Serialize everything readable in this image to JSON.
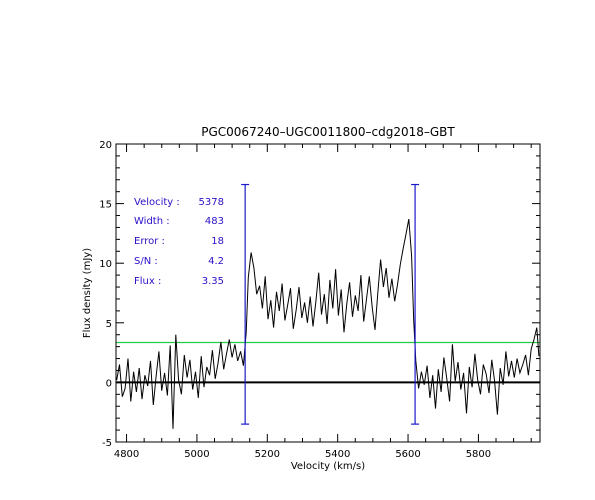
{
  "chart_data": {
    "type": "line",
    "title": "PGC0067240–UGC0011800–cdg2018–GBT",
    "xlabel": "Velocity (km/s)",
    "ylabel": "Flux density (mJy)",
    "xlim": [
      4770,
      5975
    ],
    "ylim": [
      -5,
      20
    ],
    "x_ticks": [
      4800,
      5000,
      5200,
      5400,
      5600,
      5800
    ],
    "y_ticks": [
      -5,
      0,
      5,
      10,
      15,
      20
    ],
    "grid": false,
    "zero_line": 0,
    "green_level": 3.35,
    "width_markers": {
      "lines": [
        5137,
        5620
      ],
      "y_range": [
        -3.5,
        16.6
      ]
    },
    "info": [
      {
        "label": "Velocity :",
        "value": "5378"
      },
      {
        "label": "Width :",
        "value": "483"
      },
      {
        "label": "Error :",
        "value": "18"
      },
      {
        "label": "S/N :",
        "value": "4.2"
      },
      {
        "label": "Flux :",
        "value": "3.35"
      }
    ],
    "colors": {
      "spectrum": "#000000",
      "markers": "#1a1acc",
      "level": "#22cc44",
      "info_text": "#2a10c8"
    },
    "series": [
      {
        "values": [
          [
            4772,
            0.2
          ],
          [
            4780,
            1.5
          ],
          [
            4788,
            -1.2
          ],
          [
            4796,
            -0.5
          ],
          [
            4804,
            2.0
          ],
          [
            4812,
            -1.6
          ],
          [
            4820,
            0.9
          ],
          [
            4828,
            -0.8
          ],
          [
            4836,
            1.2
          ],
          [
            4844,
            -1.4
          ],
          [
            4852,
            0.6
          ],
          [
            4860,
            -0.3
          ],
          [
            4868,
            1.8
          ],
          [
            4876,
            -1.9
          ],
          [
            4884,
            0.5
          ],
          [
            4892,
            2.6
          ],
          [
            4900,
            -0.7
          ],
          [
            4908,
            0.8
          ],
          [
            4916,
            -1.1
          ],
          [
            4924,
            3.1
          ],
          [
            4932,
            -3.9
          ],
          [
            4940,
            4.0
          ],
          [
            4948,
            0.2
          ],
          [
            4956,
            -1.0
          ],
          [
            4964,
            2.3
          ],
          [
            4972,
            0.4
          ],
          [
            4980,
            1.9
          ],
          [
            4988,
            -0.6
          ],
          [
            4996,
            0.9
          ],
          [
            5004,
            -1.3
          ],
          [
            5012,
            2.2
          ],
          [
            5020,
            -0.4
          ],
          [
            5028,
            1.3
          ],
          [
            5036,
            0.6
          ],
          [
            5044,
            2.7
          ],
          [
            5052,
            0.3
          ],
          [
            5060,
            1.6
          ],
          [
            5068,
            3.4
          ],
          [
            5076,
            1.1
          ],
          [
            5084,
            2.4
          ],
          [
            5092,
            3.6
          ],
          [
            5100,
            2.1
          ],
          [
            5108,
            3.2
          ],
          [
            5116,
            1.8
          ],
          [
            5124,
            2.6
          ],
          [
            5132,
            1.4
          ],
          [
            5140,
            4.2
          ],
          [
            5146,
            8.8
          ],
          [
            5154,
            10.9
          ],
          [
            5162,
            9.6
          ],
          [
            5170,
            7.4
          ],
          [
            5178,
            8.1
          ],
          [
            5186,
            6.2
          ],
          [
            5194,
            8.9
          ],
          [
            5202,
            5.3
          ],
          [
            5210,
            6.9
          ],
          [
            5218,
            4.6
          ],
          [
            5226,
            7.6
          ],
          [
            5234,
            6.0
          ],
          [
            5242,
            8.3
          ],
          [
            5250,
            5.2
          ],
          [
            5258,
            6.5
          ],
          [
            5266,
            7.9
          ],
          [
            5274,
            4.5
          ],
          [
            5282,
            6.1
          ],
          [
            5290,
            8.0
          ],
          [
            5298,
            5.4
          ],
          [
            5306,
            6.7
          ],
          [
            5314,
            5.0
          ],
          [
            5322,
            7.2
          ],
          [
            5330,
            4.7
          ],
          [
            5338,
            6.8
          ],
          [
            5346,
            9.2
          ],
          [
            5354,
            5.7
          ],
          [
            5362,
            7.4
          ],
          [
            5370,
            4.9
          ],
          [
            5378,
            8.6
          ],
          [
            5386,
            6.2
          ],
          [
            5394,
            9.5
          ],
          [
            5402,
            5.6
          ],
          [
            5410,
            7.8
          ],
          [
            5418,
            4.2
          ],
          [
            5426,
            6.6
          ],
          [
            5434,
            8.4
          ],
          [
            5442,
            5.5
          ],
          [
            5450,
            7.3
          ],
          [
            5458,
            6.0
          ],
          [
            5466,
            9.0
          ],
          [
            5474,
            5.1
          ],
          [
            5482,
            7.0
          ],
          [
            5490,
            8.9
          ],
          [
            5498,
            6.3
          ],
          [
            5506,
            4.4
          ],
          [
            5514,
            7.5
          ],
          [
            5522,
            10.3
          ],
          [
            5530,
            8.0
          ],
          [
            5538,
            9.6
          ],
          [
            5546,
            7.1
          ],
          [
            5554,
            8.7
          ],
          [
            5562,
            6.8
          ],
          [
            5570,
            8.2
          ],
          [
            5578,
            9.9
          ],
          [
            5586,
            11.2
          ],
          [
            5594,
            12.4
          ],
          [
            5602,
            13.7
          ],
          [
            5610,
            10.6
          ],
          [
            5616,
            5.2
          ],
          [
            5622,
            1.8
          ],
          [
            5630,
            -0.5
          ],
          [
            5638,
            0.9
          ],
          [
            5646,
            -0.2
          ],
          [
            5654,
            1.4
          ],
          [
            5662,
            -1.3
          ],
          [
            5670,
            0.6
          ],
          [
            5678,
            -2.2
          ],
          [
            5686,
            1.1
          ],
          [
            5694,
            -0.8
          ],
          [
            5702,
            2.1
          ],
          [
            5710,
            0.3
          ],
          [
            5718,
            -1.6
          ],
          [
            5726,
            3.2
          ],
          [
            5734,
            0.1
          ],
          [
            5742,
            1.7
          ],
          [
            5750,
            -0.6
          ],
          [
            5758,
            0.8
          ],
          [
            5766,
            -2.6
          ],
          [
            5774,
            1.3
          ],
          [
            5782,
            -0.4
          ],
          [
            5790,
            2.4
          ],
          [
            5798,
            0.2
          ],
          [
            5806,
            -1.0
          ],
          [
            5814,
            1.5
          ],
          [
            5822,
            0.7
          ],
          [
            5830,
            -0.9
          ],
          [
            5838,
            1.9
          ],
          [
            5846,
            0.1
          ],
          [
            5854,
            -2.7
          ],
          [
            5862,
            1.2
          ],
          [
            5870,
            -0.2
          ],
          [
            5878,
            2.6
          ],
          [
            5886,
            0.5
          ],
          [
            5894,
            1.8
          ],
          [
            5902,
            0.4
          ],
          [
            5910,
            2.0
          ],
          [
            5918,
            0.8
          ],
          [
            5926,
            1.5
          ],
          [
            5934,
            2.3
          ],
          [
            5942,
            0.6
          ],
          [
            5950,
            2.8
          ],
          [
            5958,
            3.6
          ],
          [
            5966,
            4.6
          ],
          [
            5972,
            2.2
          ]
        ]
      }
    ]
  }
}
